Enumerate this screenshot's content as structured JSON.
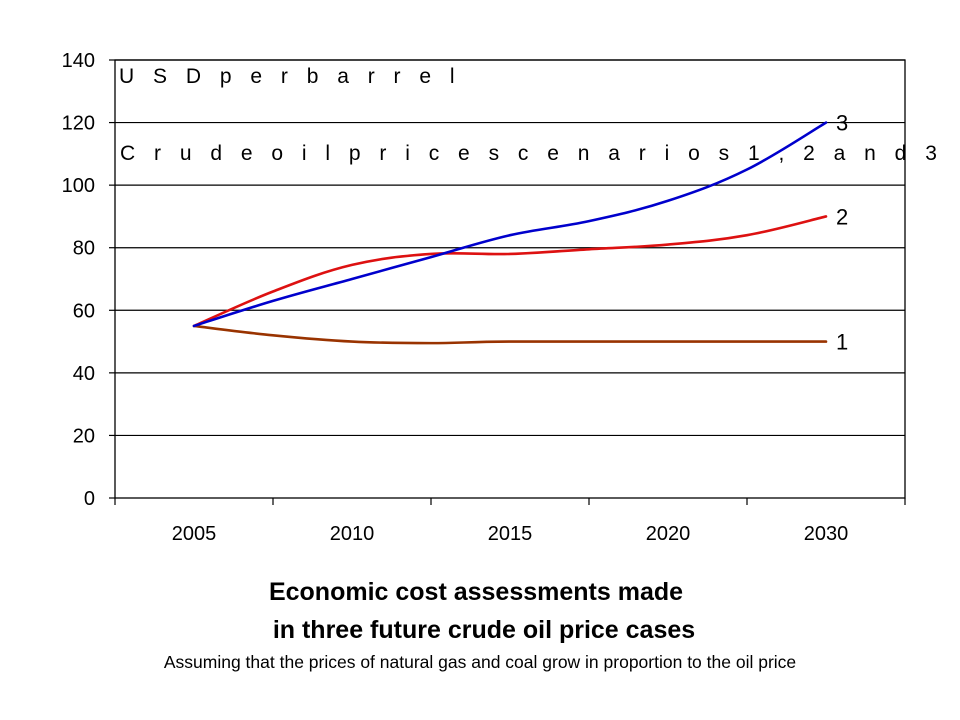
{
  "chart_data": {
    "type": "line",
    "categories": [
      "2005",
      "2010",
      "2015",
      "2020",
      "2030"
    ],
    "ylim": [
      0,
      140
    ],
    "yticks": [
      0,
      20,
      40,
      60,
      80,
      100,
      120,
      140
    ],
    "ytick_labels": [
      "0",
      "20",
      "40",
      "60",
      "80",
      "100",
      "120",
      "140"
    ],
    "grid": true,
    "annotations": [
      "U S D  p e r  b a r r e l",
      "C r u d e  o i l  p r i c e  s c e n a r i o s  1 ,  2 a n d 3"
    ],
    "series": [
      {
        "name": "1",
        "color": "#993300",
        "points": [
          {
            "x": 0,
            "y": 55
          },
          {
            "x": 0.5,
            "y": 52
          },
          {
            "x": 1,
            "y": 50
          },
          {
            "x": 1.5,
            "y": 49.5
          },
          {
            "x": 2,
            "y": 50
          },
          {
            "x": 3,
            "y": 50
          },
          {
            "x": 4,
            "y": 50
          }
        ]
      },
      {
        "name": "2",
        "color": "#dd1111",
        "points": [
          {
            "x": 0,
            "y": 55
          },
          {
            "x": 0.5,
            "y": 66
          },
          {
            "x": 1,
            "y": 74.5
          },
          {
            "x": 1.5,
            "y": 78
          },
          {
            "x": 2,
            "y": 78
          },
          {
            "x": 2.5,
            "y": 79.5
          },
          {
            "x": 3,
            "y": 81
          },
          {
            "x": 3.5,
            "y": 84
          },
          {
            "x": 4,
            "y": 90
          }
        ]
      },
      {
        "name": "3",
        "color": "#0000cc",
        "points": [
          {
            "x": 0,
            "y": 55
          },
          {
            "x": 0.5,
            "y": 63
          },
          {
            "x": 1,
            "y": 70
          },
          {
            "x": 1.5,
            "y": 77
          },
          {
            "x": 2,
            "y": 84
          },
          {
            "x": 2.5,
            "y": 88.5
          },
          {
            "x": 3,
            "y": 95
          },
          {
            "x": 3.5,
            "y": 105
          },
          {
            "x": 4,
            "y": 120
          }
        ]
      }
    ]
  },
  "caption": {
    "title_line_1": "Economic cost assessments made",
    "title_line_2": "in three future crude oil price cases",
    "subtitle": "Assuming that the prices of natural gas and coal grow in proportion to the oil price"
  }
}
